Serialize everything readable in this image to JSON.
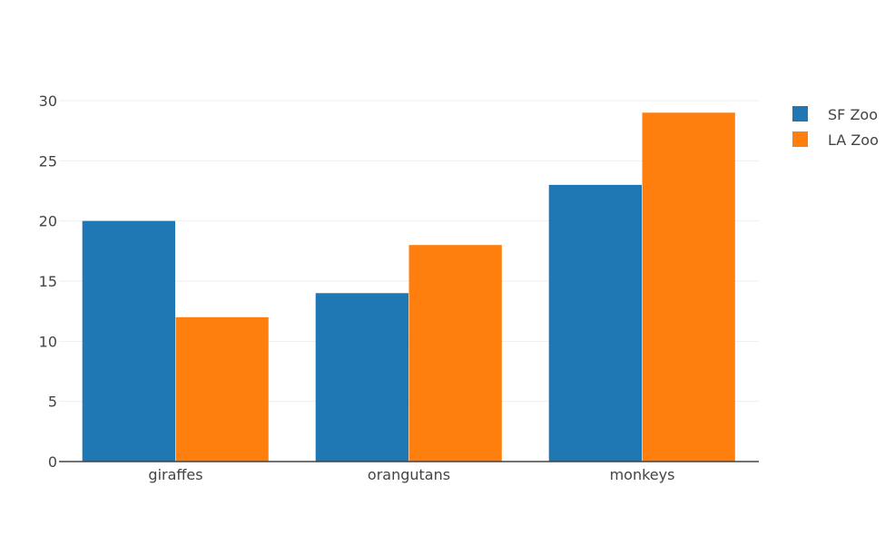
{
  "chart_data": {
    "type": "bar",
    "title": "",
    "xlabel": "",
    "ylabel": "",
    "categories": [
      "giraffes",
      "orangutans",
      "monkeys"
    ],
    "series": [
      {
        "name": "SF Zoo",
        "values": [
          20,
          14,
          23
        ],
        "color": "#1f77b4"
      },
      {
        "name": "LA Zoo",
        "values": [
          12,
          18,
          29
        ],
        "color": "#ff7f0e"
      }
    ],
    "ylim": [
      0,
      30
    ],
    "yticks": [
      0,
      5,
      10,
      15,
      20,
      25,
      30
    ],
    "grid": true,
    "legend_position": "top-right",
    "colors": {
      "grid": "#eeeeee",
      "axis": "#444444",
      "text": "#444444"
    }
  }
}
